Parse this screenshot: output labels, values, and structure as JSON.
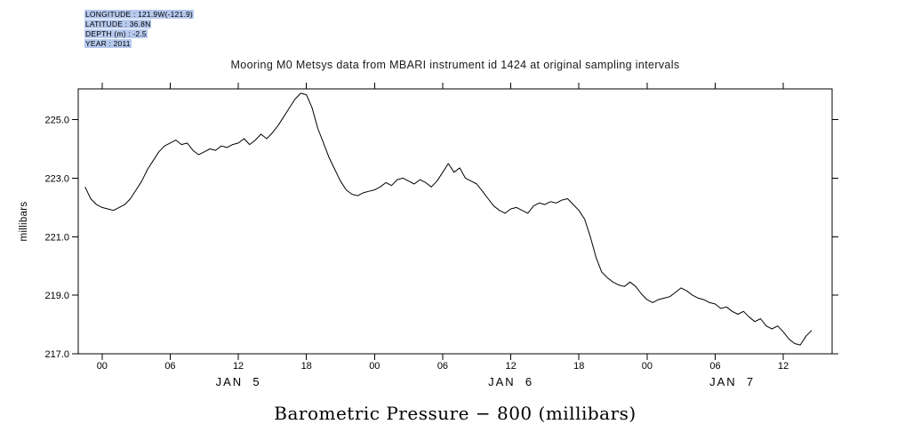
{
  "meta": {
    "highlight_color": "#b6c9ee",
    "lines": [
      "LONGITUDE : 121.9W(-121.9)",
      "LATITUDE : 36.8N",
      "DEPTH (m) : -2.5",
      "YEAR : 2011"
    ]
  },
  "chart_data": {
    "type": "line",
    "title": "Mooring M0 Metsys data from MBARI instrument id 1424 at original sampling intervals",
    "xlabel": "Barometric Pressure − 800 (millibars)",
    "ylabel": "millibars",
    "line_color": "#000000",
    "grid": false,
    "legend": "none",
    "x_unit": "hours since JAN 5 00:00 (2011)",
    "xlim": [
      -2.1,
      64.3
    ],
    "ylim": [
      217.0,
      226.05
    ],
    "y_ticks": [
      {
        "value": 217.0,
        "label": "217.0"
      },
      {
        "value": 219.0,
        "label": "219.0"
      },
      {
        "value": 221.0,
        "label": "221.0"
      },
      {
        "value": 223.0,
        "label": "223.0"
      },
      {
        "value": 225.0,
        "label": "225.0"
      }
    ],
    "x_ticks": [
      {
        "hours": 0,
        "label": "00"
      },
      {
        "hours": 6,
        "label": "06"
      },
      {
        "hours": 12,
        "label": "12"
      },
      {
        "hours": 18,
        "label": "18"
      },
      {
        "hours": 24,
        "label": "00"
      },
      {
        "hours": 30,
        "label": "06"
      },
      {
        "hours": 36,
        "label": "12"
      },
      {
        "hours": 42,
        "label": "18"
      },
      {
        "hours": 48,
        "label": "00"
      },
      {
        "hours": 54,
        "label": "06"
      },
      {
        "hours": 60,
        "label": "12"
      }
    ],
    "day_labels": [
      {
        "hours": 12,
        "label": "JAN  5"
      },
      {
        "hours": 36,
        "label": "JAN  6"
      },
      {
        "hours": 55.5,
        "label": "JAN  7"
      }
    ],
    "series": [
      {
        "name": "barometric_pressure_minus_800_mb",
        "x_start_hours": -1.5,
        "x_step_hours": 0.5,
        "values": [
          222.7,
          222.3,
          222.1,
          222.0,
          221.95,
          221.9,
          222.0,
          222.1,
          222.3,
          222.6,
          222.9,
          223.3,
          223.6,
          223.9,
          224.1,
          224.2,
          224.3,
          224.15,
          224.2,
          223.95,
          223.8,
          223.9,
          224.0,
          223.95,
          224.1,
          224.05,
          224.15,
          224.2,
          224.35,
          224.15,
          224.3,
          224.5,
          224.35,
          224.55,
          224.8,
          225.1,
          225.4,
          225.7,
          225.9,
          225.85,
          225.4,
          224.7,
          224.2,
          223.7,
          223.3,
          222.9,
          222.6,
          222.45,
          222.4,
          222.5,
          222.55,
          222.6,
          222.7,
          222.85,
          222.75,
          222.95,
          223.0,
          222.9,
          222.8,
          222.95,
          222.85,
          222.7,
          222.9,
          223.2,
          223.5,
          223.2,
          223.35,
          223.0,
          222.9,
          222.8,
          222.55,
          222.3,
          222.05,
          221.9,
          221.8,
          221.95,
          222.0,
          221.9,
          221.8,
          222.05,
          222.15,
          222.1,
          222.2,
          222.15,
          222.25,
          222.3,
          222.1,
          221.9,
          221.6,
          221.0,
          220.3,
          219.8,
          219.6,
          219.45,
          219.35,
          219.3,
          219.45,
          219.3,
          219.05,
          218.85,
          218.75,
          218.85,
          218.9,
          218.95,
          219.1,
          219.25,
          219.15,
          219.0,
          218.9,
          218.85,
          218.75,
          218.7,
          218.55,
          218.6,
          218.45,
          218.35,
          218.45,
          218.25,
          218.1,
          218.2,
          217.95,
          217.85,
          217.95,
          217.75,
          217.5,
          217.35,
          217.3,
          217.6,
          217.8
        ]
      }
    ]
  }
}
